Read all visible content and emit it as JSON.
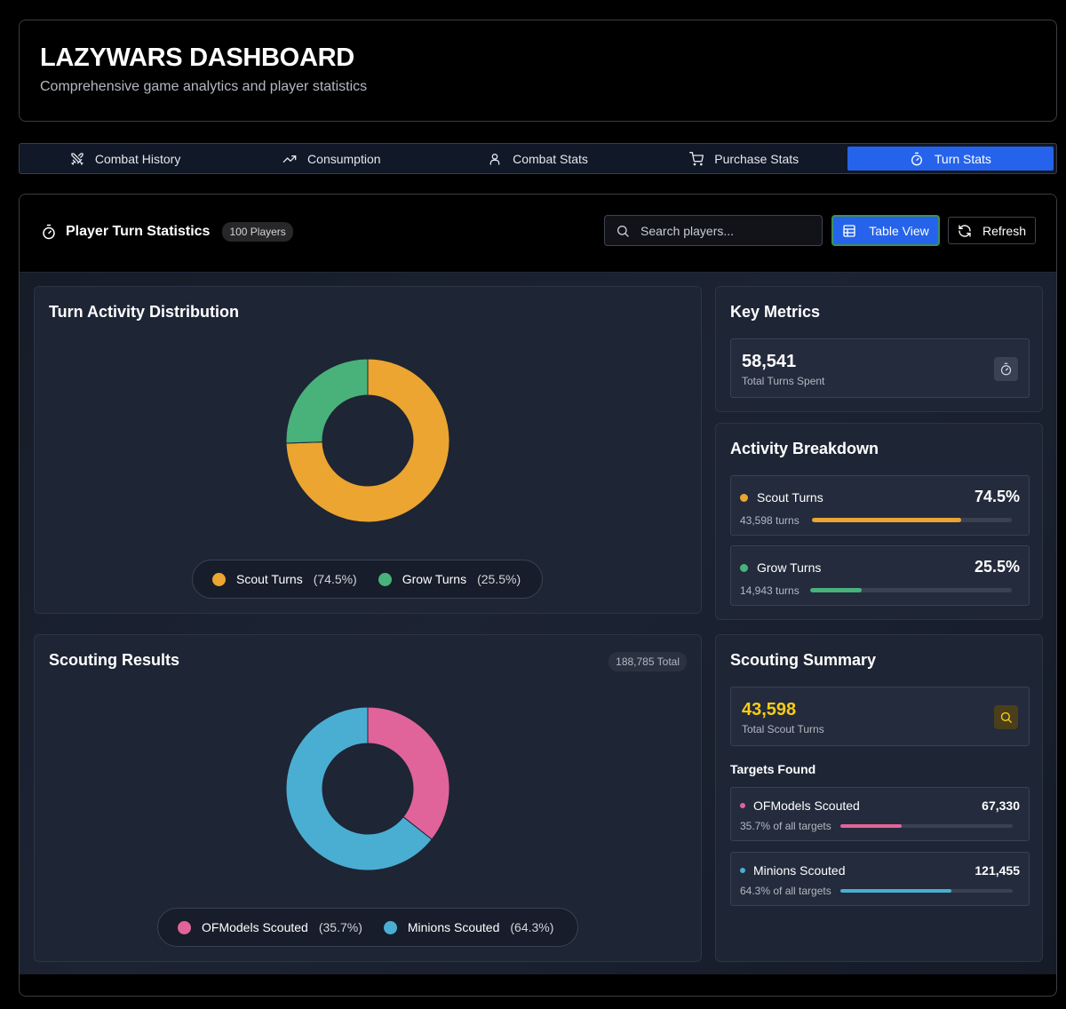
{
  "header": {
    "title": "LAZYWARS DASHBOARD",
    "subtitle": "Comprehensive game analytics and player statistics"
  },
  "tabs": [
    {
      "label": "Combat History",
      "icon": "swords-icon"
    },
    {
      "label": "Consumption",
      "icon": "trending-up-icon"
    },
    {
      "label": "Combat Stats",
      "icon": "user-icon"
    },
    {
      "label": "Purchase Stats",
      "icon": "cart-icon"
    },
    {
      "label": "Turn Stats",
      "icon": "timer-icon",
      "active": true
    }
  ],
  "panel": {
    "title": "Player Turn Statistics",
    "players_badge": "100 Players",
    "search_placeholder": "Search players...",
    "table_view_label": "Table View",
    "refresh_label": "Refresh"
  },
  "turn_activity": {
    "title": "Turn Activity Distribution",
    "legend": [
      {
        "name": "Scout Turns",
        "pct": "(74.5%)",
        "color": "#eba530"
      },
      {
        "name": "Grow Turns",
        "pct": "(25.5%)",
        "color": "#48b27a"
      }
    ]
  },
  "scouting_results": {
    "title": "Scouting Results",
    "total_badge": "188,785 Total",
    "legend": [
      {
        "name": "OFModels Scouted",
        "pct": "(35.7%)",
        "color": "#e0649a"
      },
      {
        "name": "Minions Scouted",
        "pct": "(64.3%)",
        "color": "#4aaed2"
      }
    ]
  },
  "key_metrics": {
    "title": "Key Metrics",
    "total_turns_value": "58,541",
    "total_turns_label": "Total Turns Spent"
  },
  "activity_breakdown": {
    "title": "Activity Breakdown",
    "items": [
      {
        "name": "Scout Turns",
        "pct": "74.5%",
        "turns": "43,598 turns",
        "fraction": 0.745,
        "color": "#eba530"
      },
      {
        "name": "Grow Turns",
        "pct": "25.5%",
        "turns": "14,943 turns",
        "fraction": 0.255,
        "color": "#48b27a"
      }
    ]
  },
  "scouting_summary": {
    "title": "Scouting Summary",
    "scout_turns_value": "43,598",
    "scout_turns_label": "Total Scout Turns",
    "targets_label": "Targets Found",
    "targets": [
      {
        "name": "OFModels Scouted",
        "count": "67,330",
        "sub": "35.7% of all targets",
        "fraction": 0.357,
        "color": "#e0649a"
      },
      {
        "name": "Minions Scouted",
        "count": "121,455",
        "sub": "64.3% of all targets",
        "fraction": 0.643,
        "color": "#4aaed2"
      }
    ]
  },
  "chart_data": [
    {
      "type": "pie",
      "title": "Turn Activity Distribution",
      "categories": [
        "Scout Turns",
        "Grow Turns"
      ],
      "values": [
        43598,
        14943
      ],
      "percent": [
        74.5,
        25.5
      ],
      "colors": [
        "#eba530",
        "#48b27a"
      ],
      "legend": "bottom"
    },
    {
      "type": "pie",
      "title": "Scouting Results",
      "categories": [
        "OFModels Scouted",
        "Minions Scouted"
      ],
      "values": [
        67330,
        121455
      ],
      "percent": [
        35.7,
        64.3
      ],
      "colors": [
        "#e0649a",
        "#4aaed2"
      ],
      "legend": "bottom"
    }
  ]
}
